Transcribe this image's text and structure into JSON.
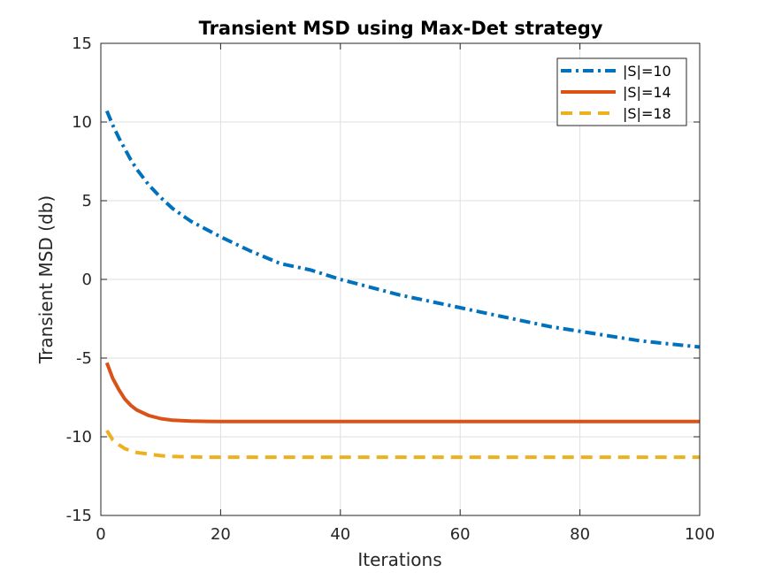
{
  "chart_data": {
    "type": "line",
    "title": "Transient MSD using Max-Det strategy",
    "xlabel": "Iterations",
    "ylabel": "Transient MSD (db)",
    "xlim": [
      0,
      100
    ],
    "ylim": [
      -15,
      15
    ],
    "xticks": [
      0,
      20,
      40,
      60,
      80,
      100
    ],
    "yticks": [
      -15,
      -10,
      -5,
      0,
      5,
      10,
      15
    ],
    "grid": true,
    "legend_position": "top-right",
    "x": [
      1,
      2,
      3,
      4,
      5,
      6,
      8,
      10,
      12,
      15,
      18,
      20,
      25,
      30,
      35,
      40,
      45,
      50,
      55,
      60,
      65,
      70,
      75,
      80,
      85,
      90,
      95,
      100
    ],
    "series": [
      {
        "name": "|S|=10",
        "color": "#0072BD",
        "style": "dashdot",
        "values": [
          10.7,
          9.8,
          9.0,
          8.3,
          7.6,
          7.0,
          6.0,
          5.2,
          4.5,
          3.7,
          3.1,
          2.7,
          1.8,
          1.0,
          0.6,
          0.0,
          -0.5,
          -1.0,
          -1.4,
          -1.8,
          -2.2,
          -2.6,
          -3.0,
          -3.3,
          -3.6,
          -3.9,
          -4.1,
          -4.3
        ]
      },
      {
        "name": "|S|=14",
        "color": "#D95319",
        "style": "solid",
        "values": [
          -5.3,
          -6.3,
          -7.0,
          -7.6,
          -8.0,
          -8.3,
          -8.65,
          -8.85,
          -8.95,
          -9.0,
          -9.02,
          -9.03,
          -9.03,
          -9.03,
          -9.03,
          -9.03,
          -9.03,
          -9.03,
          -9.03,
          -9.03,
          -9.03,
          -9.03,
          -9.03,
          -9.03,
          -9.03,
          -9.03,
          -9.03,
          -9.03
        ]
      },
      {
        "name": "|S|=18",
        "color": "#EDB120",
        "style": "dashed",
        "values": [
          -9.6,
          -10.2,
          -10.5,
          -10.75,
          -10.9,
          -11.0,
          -11.1,
          -11.2,
          -11.25,
          -11.28,
          -11.3,
          -11.3,
          -11.3,
          -11.3,
          -11.3,
          -11.3,
          -11.3,
          -11.3,
          -11.3,
          -11.3,
          -11.3,
          -11.3,
          -11.3,
          -11.3,
          -11.3,
          -11.3,
          -11.3,
          -11.3
        ]
      }
    ]
  }
}
